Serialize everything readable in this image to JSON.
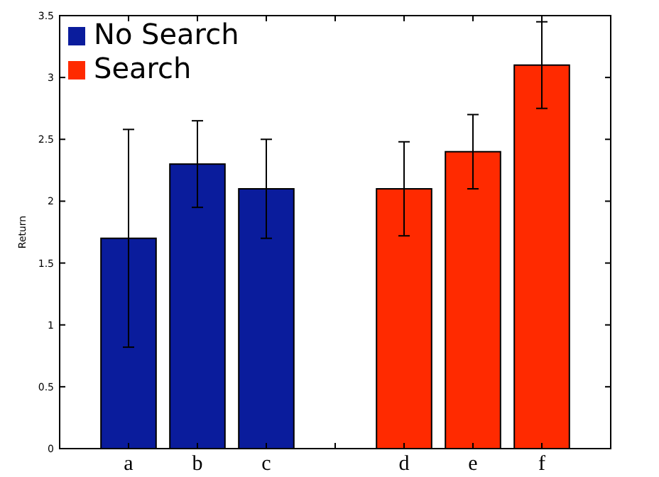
{
  "chart_data": {
    "type": "bar",
    "ylabel": "Return",
    "categories": [
      "a",
      "b",
      "c",
      null,
      "d",
      "e",
      "f"
    ],
    "series": [
      {
        "name": "No Search",
        "color": "#0a1c9c",
        "values": [
          1.7,
          2.3,
          2.1,
          null,
          null,
          null,
          null
        ],
        "errors": [
          [
            0.82,
            2.58
          ],
          [
            1.95,
            2.65
          ],
          [
            1.7,
            2.5
          ],
          null,
          null,
          null,
          null
        ]
      },
      {
        "name": "Search",
        "color": "#ff2a00",
        "values": [
          null,
          null,
          null,
          null,
          2.1,
          2.4,
          3.1
        ],
        "errors": [
          null,
          null,
          null,
          null,
          [
            1.72,
            2.48
          ],
          [
            2.1,
            2.7
          ],
          [
            2.75,
            3.45
          ]
        ]
      }
    ],
    "ylim": [
      0,
      3.5
    ],
    "yticks": [
      0,
      0.5,
      1,
      1.5,
      2,
      2.5,
      3,
      3.5
    ],
    "legend": "top left",
    "grid": false
  }
}
